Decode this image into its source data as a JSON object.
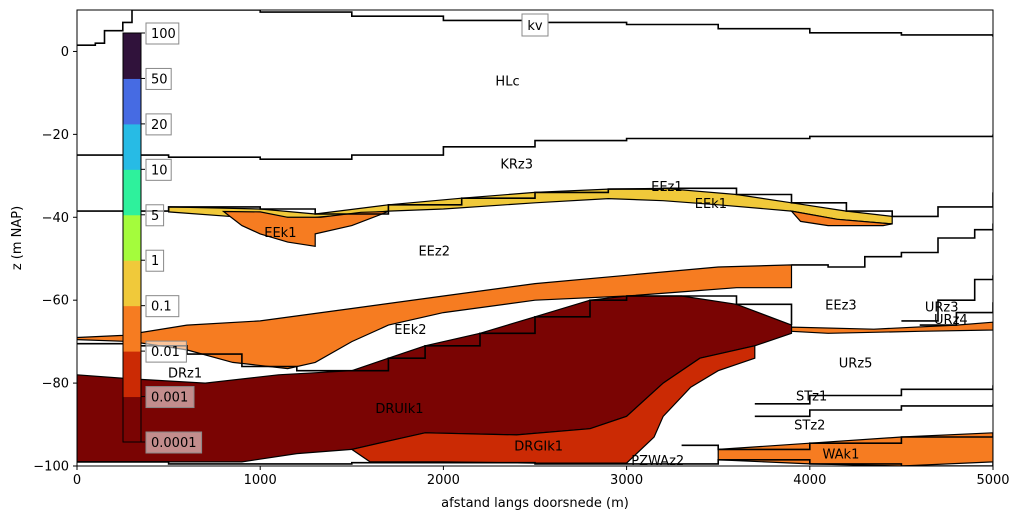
{
  "chart_data": {
    "type": "area",
    "xlabel": "afstand langs doorsnede (m)",
    "ylabel": "z (m NAP)",
    "xlim": [
      0,
      5000
    ],
    "ylim": [
      -100,
      10
    ],
    "x_ticks": [
      "0",
      "1000",
      "2000",
      "3000",
      "4000",
      "5000"
    ],
    "y_ticks": [
      "0",
      "−20",
      "−40",
      "−60",
      "−80",
      "−100"
    ],
    "colorbar": {
      "title": "kv",
      "labels": [
        "100",
        "50",
        "20",
        "10",
        "5",
        "1",
        "0.1",
        "0.01",
        "0.001",
        "0.0001"
      ],
      "bin_colors": [
        "#7a0403",
        "#cb2a04",
        "#f67c21",
        "#f0c93a",
        "#a4fc3c",
        "#2ef19c",
        "#27bbe5",
        "#466be3",
        "#30123b"
      ]
    },
    "layers": [
      {
        "name": "HLc",
        "label_x": 2350,
        "label_y": -7
      },
      {
        "name": "KRz3",
        "label_x": 2400,
        "label_y": -27
      },
      {
        "name": "EEz1",
        "label_x": 3220,
        "label_y": -32.5
      },
      {
        "name": "EEk1",
        "label_x": 1110,
        "label_y": -43.5
      },
      {
        "name": "EEk1",
        "label_x": 3460,
        "label_y": -36.5
      },
      {
        "name": "EEz2",
        "label_x": 1950,
        "label_y": -48
      },
      {
        "name": "EEz3",
        "label_x": 4170,
        "label_y": -61
      },
      {
        "name": "URz3",
        "label_x": 4720,
        "label_y": -61.5
      },
      {
        "name": "URz4",
        "label_x": 4770,
        "label_y": -64.5
      },
      {
        "name": "EEk2",
        "label_x": 1820,
        "label_y": -67
      },
      {
        "name": "URz5",
        "label_x": 4250,
        "label_y": -75
      },
      {
        "name": "DRz1",
        "label_x": 590,
        "label_y": -77.5
      },
      {
        "name": "STz1",
        "label_x": 4010,
        "label_y": -83
      },
      {
        "name": "DRUIk1",
        "label_x": 1760,
        "label_y": -86
      },
      {
        "name": "STz2",
        "label_x": 4000,
        "label_y": -90
      },
      {
        "name": "DRGIk1",
        "label_x": 2520,
        "label_y": -95
      },
      {
        "name": "WAk1",
        "label_x": 4170,
        "label_y": -97
      },
      {
        "name": "PZWAz2",
        "label_x": 3170,
        "label_y": -98.5
      }
    ],
    "filled_regions": [
      {
        "layer": "EEk1",
        "kv_class": "0.1-1",
        "color": "#f0c93a",
        "points": [
          [
            500,
            -37.5
          ],
          [
            1000,
            -38
          ],
          [
            1300,
            -39.2
          ],
          [
            1700,
            -37
          ],
          [
            2100,
            -35.4
          ],
          [
            2500,
            -34
          ],
          [
            2900,
            -33.2
          ],
          [
            3200,
            -33
          ],
          [
            3600,
            -34.5
          ],
          [
            3900,
            -36.5
          ],
          [
            4200,
            -38.5
          ],
          [
            4450,
            -39.8
          ],
          [
            4450,
            -41.6
          ],
          [
            4150,
            -40.5
          ],
          [
            3900,
            -38.5
          ],
          [
            3500,
            -37
          ],
          [
            3200,
            -36
          ],
          [
            2900,
            -35.5
          ],
          [
            2500,
            -36.5
          ],
          [
            2000,
            -38
          ],
          [
            1700,
            -38.5
          ],
          [
            1300,
            -40
          ],
          [
            900,
            -40
          ],
          [
            500,
            -38.7
          ]
        ]
      },
      {
        "layer": "EEk1",
        "kv_class": "0.01-0.1",
        "color": "#f67c21",
        "points": [
          [
            800,
            -38.6
          ],
          [
            1000,
            -38.7
          ],
          [
            1150,
            -40
          ],
          [
            1330,
            -40
          ],
          [
            1550,
            -38.8
          ],
          [
            1700,
            -38.6
          ],
          [
            1500,
            -42
          ],
          [
            1300,
            -44
          ],
          [
            1300,
            -47
          ],
          [
            1150,
            -46
          ],
          [
            1000,
            -44
          ],
          [
            900,
            -42
          ]
        ]
      },
      {
        "layer": "EEk1",
        "kv_class": "0.01-0.1",
        "color": "#f67c21",
        "points": [
          [
            3900,
            -38.5
          ],
          [
            4150,
            -40.5
          ],
          [
            4450,
            -41.6
          ],
          [
            4400,
            -42
          ],
          [
            4100,
            -42
          ],
          [
            3950,
            -41
          ]
        ]
      },
      {
        "layer": "EEk2",
        "kv_class": "0.01-0.1",
        "color": "#f67c21",
        "points": [
          [
            0,
            -69
          ],
          [
            250,
            -68.5
          ],
          [
            600,
            -66
          ],
          [
            1000,
            -65
          ],
          [
            1500,
            -62
          ],
          [
            2000,
            -59
          ],
          [
            2500,
            -56
          ],
          [
            3000,
            -54
          ],
          [
            3500,
            -52
          ],
          [
            3900,
            -51.5
          ],
          [
            3900,
            -57
          ],
          [
            3600,
            -57
          ],
          [
            3300,
            -58
          ],
          [
            3000,
            -59
          ],
          [
            2500,
            -60
          ],
          [
            2000,
            -63
          ],
          [
            1700,
            -66
          ],
          [
            1500,
            -70
          ],
          [
            1300,
            -75
          ],
          [
            1150,
            -76.5
          ],
          [
            850,
            -75
          ],
          [
            600,
            -72
          ],
          [
            300,
            -70
          ],
          [
            0,
            -69.5
          ]
        ]
      },
      {
        "layer": "EEk2",
        "kv_class": "0.01-0.1",
        "color": "#f67c21",
        "points": [
          [
            3900,
            -66.5
          ],
          [
            4350,
            -67
          ],
          [
            4800,
            -66
          ],
          [
            5000,
            -65.3
          ],
          [
            5000,
            -67.2
          ],
          [
            4600,
            -67.5
          ],
          [
            4100,
            -68
          ],
          [
            3900,
            -67.5
          ]
        ]
      },
      {
        "layer": "DRUIk1",
        "kv_class": "0.0001-0.001",
        "color": "#7a0403",
        "points": [
          [
            0,
            -78
          ],
          [
            300,
            -79
          ],
          [
            700,
            -80
          ],
          [
            1100,
            -78
          ],
          [
            1500,
            -77
          ],
          [
            1700,
            -74
          ],
          [
            1900,
            -71
          ],
          [
            2200,
            -68
          ],
          [
            2500,
            -64
          ],
          [
            2800,
            -60
          ],
          [
            3000,
            -59
          ],
          [
            3300,
            -59
          ],
          [
            3600,
            -61
          ],
          [
            3900,
            -66
          ],
          [
            3900,
            -68
          ],
          [
            3700,
            -71
          ],
          [
            3400,
            -74
          ],
          [
            3200,
            -80
          ],
          [
            3100,
            -84
          ],
          [
            3000,
            -88
          ],
          [
            2800,
            -91
          ],
          [
            2400,
            -92.5
          ],
          [
            1900,
            -92
          ],
          [
            1700,
            -94
          ],
          [
            1500,
            -96
          ],
          [
            1200,
            -97
          ],
          [
            900,
            -99
          ],
          [
            500,
            -99
          ],
          [
            0,
            -99
          ]
        ]
      },
      {
        "layer": "DRGIk1",
        "kv_class": "0.001-0.01",
        "color": "#cb2a04",
        "points": [
          [
            2800,
            -91
          ],
          [
            3000,
            -88
          ],
          [
            3200,
            -80
          ],
          [
            3400,
            -74
          ],
          [
            3700,
            -71
          ],
          [
            3700,
            -74
          ],
          [
            3500,
            -77
          ],
          [
            3350,
            -81
          ],
          [
            3200,
            -88
          ],
          [
            3150,
            -93
          ],
          [
            3000,
            -99.3
          ],
          [
            2500,
            -99.3
          ],
          [
            2000,
            -99
          ],
          [
            1600,
            -99
          ],
          [
            1500,
            -96
          ],
          [
            1700,
            -94
          ],
          [
            1900,
            -92
          ],
          [
            2400,
            -92.5
          ]
        ]
      },
      {
        "layer": "WAk1",
        "kv_class": "0.01-0.1",
        "color": "#f67c21",
        "points": [
          [
            3500,
            -96
          ],
          [
            4000,
            -94.5
          ],
          [
            4500,
            -93
          ],
          [
            5000,
            -92
          ],
          [
            5000,
            -99
          ],
          [
            4500,
            -100
          ],
          [
            4000,
            -99.5
          ],
          [
            3500,
            -98.5
          ]
        ]
      }
    ],
    "boundary_lines": [
      {
        "name": "surface",
        "points": [
          [
            0,
            1.5
          ],
          [
            100,
            2
          ],
          [
            150,
            5
          ],
          [
            250,
            7
          ],
          [
            300,
            10
          ],
          [
            500,
            10
          ],
          [
            1000,
            9.5
          ],
          [
            1500,
            8.5
          ],
          [
            2000,
            7.5
          ],
          [
            2500,
            7
          ],
          [
            3000,
            6.5
          ],
          [
            3500,
            5.5
          ],
          [
            4000,
            4.5
          ],
          [
            4500,
            4
          ],
          [
            5000,
            3.5
          ]
        ]
      },
      {
        "name": "HLc-KRz3",
        "points": [
          [
            0,
            -25
          ],
          [
            500,
            -25.5
          ],
          [
            1000,
            -26
          ],
          [
            1500,
            -25
          ],
          [
            2000,
            -23
          ],
          [
            2500,
            -21.5
          ],
          [
            3000,
            -21
          ],
          [
            3500,
            -21
          ],
          [
            4000,
            -20.5
          ],
          [
            4500,
            -20.5
          ],
          [
            5000,
            -20
          ]
        ]
      },
      {
        "name": "KRz3-EEz1",
        "points": [
          [
            0,
            -38.5
          ],
          [
            500,
            -37.5
          ],
          [
            1000,
            -38
          ],
          [
            1300,
            -39.2
          ],
          [
            1700,
            -37
          ],
          [
            2100,
            -35.4
          ],
          [
            2500,
            -34
          ],
          [
            2900,
            -33.2
          ],
          [
            3200,
            -33
          ],
          [
            3600,
            -34.5
          ],
          [
            3900,
            -36.5
          ],
          [
            4200,
            -38.5
          ],
          [
            4450,
            -39.8
          ],
          [
            4700,
            -37.5
          ],
          [
            5000,
            -34
          ]
        ]
      },
      {
        "name": "EEz2-EEz3",
        "points": [
          [
            3900,
            -51.5
          ],
          [
            4100,
            -52
          ],
          [
            4300,
            -49.5
          ],
          [
            4500,
            -48.5
          ],
          [
            4700,
            -45
          ],
          [
            4900,
            -43
          ],
          [
            5000,
            -41.5
          ]
        ]
      },
      {
        "name": "EEz3-URz3",
        "points": [
          [
            4500,
            -65
          ],
          [
            4700,
            -60
          ],
          [
            4900,
            -55
          ],
          [
            5000,
            -54
          ]
        ]
      },
      {
        "name": "URz3-URz4",
        "points": [
          [
            4600,
            -66
          ],
          [
            4800,
            -63
          ],
          [
            5000,
            -60.5
          ]
        ]
      },
      {
        "name": "top-DRz1",
        "points": [
          [
            0,
            -70.5
          ],
          [
            300,
            -71
          ],
          [
            600,
            -73
          ],
          [
            900,
            -76
          ],
          [
            1200,
            -77
          ],
          [
            1500,
            -77
          ],
          [
            1700,
            -74
          ],
          [
            1900,
            -71
          ],
          [
            2200,
            -68
          ],
          [
            2500,
            -64
          ],
          [
            2800,
            -60
          ],
          [
            3000,
            -59
          ],
          [
            3300,
            -59
          ],
          [
            3600,
            -61
          ],
          [
            3900,
            -66
          ]
        ]
      },
      {
        "name": "URz5-STz1",
        "points": [
          [
            3700,
            -85
          ],
          [
            4000,
            -83
          ],
          [
            4500,
            -81.5
          ],
          [
            5000,
            -80.5
          ]
        ]
      },
      {
        "name": "STz1-STz2",
        "points": [
          [
            3700,
            -88
          ],
          [
            4000,
            -86.5
          ],
          [
            4500,
            -85.5
          ],
          [
            5000,
            -85
          ]
        ]
      },
      {
        "name": "base-STz2",
        "points": [
          [
            3300,
            -95
          ],
          [
            3500,
            -96
          ],
          [
            4000,
            -94.5
          ],
          [
            4500,
            -93
          ],
          [
            5000,
            -92
          ]
        ]
      },
      {
        "name": "base",
        "points": [
          [
            0,
            -99
          ],
          [
            500,
            -99.5
          ],
          [
            1500,
            -99.2
          ],
          [
            2500,
            -99.5
          ],
          [
            3000,
            -99.5
          ],
          [
            3500,
            -98.5
          ],
          [
            4000,
            -99.5
          ],
          [
            4500,
            -100
          ],
          [
            5000,
            -99
          ]
        ]
      }
    ]
  }
}
